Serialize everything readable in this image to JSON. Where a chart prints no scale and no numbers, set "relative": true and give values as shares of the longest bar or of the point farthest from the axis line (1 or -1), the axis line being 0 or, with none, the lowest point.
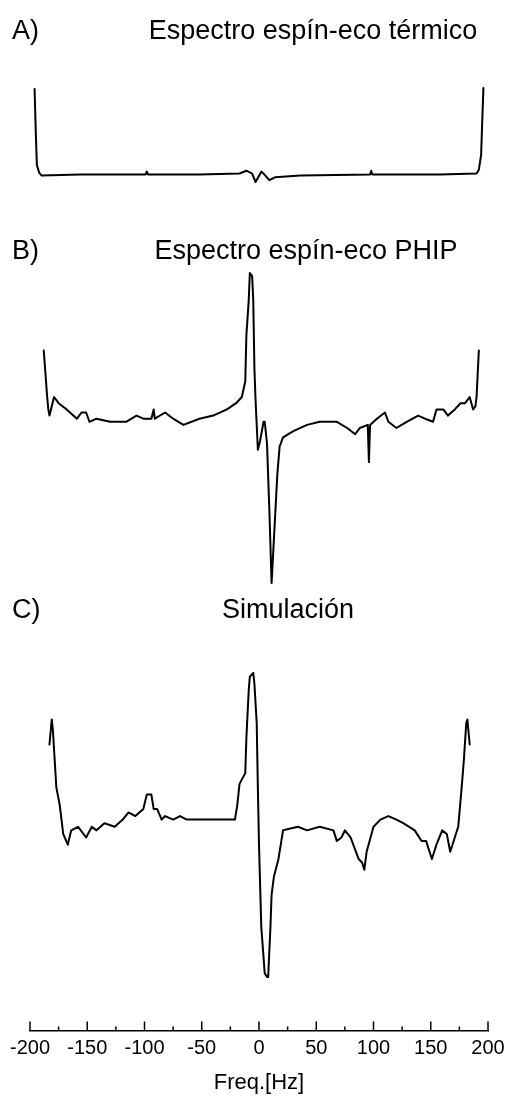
{
  "chart_data": [
    {
      "type": "line",
      "title": "Espectro espín-eco térmico",
      "annotations": [
        "A)"
      ],
      "relative": true,
      "xlim": [
        -200,
        200
      ],
      "tick_labels": false,
      "marker": "none",
      "line_style": "solid",
      "x": [
        -196,
        -195,
        -194,
        -192,
        -190,
        -156,
        -99,
        -98,
        -97,
        -52,
        -17,
        -11,
        -6,
        -3,
        2,
        4,
        9,
        14,
        36,
        97,
        98,
        99,
        158,
        190,
        192,
        194,
        195,
        196
      ],
      "series": [
        {
          "color": "#000000",
          "values": [
            0.99,
            0.55,
            0.18,
            0.1,
            0.07,
            0.08,
            0.08,
            0.11,
            0.08,
            0.08,
            0.09,
            0.12,
            0.09,
            0,
            0.11,
            0.09,
            0.02,
            0.05,
            0.07,
            0.08,
            0.12,
            0.08,
            0.08,
            0.09,
            0.13,
            0.29,
            0.66,
            1.0
          ]
        }
      ]
    },
    {
      "type": "line",
      "title": "Espectro espín-eco PHIP",
      "annotations": [
        "B)"
      ],
      "relative": true,
      "xlim": [
        -200,
        200
      ],
      "tick_labels": false,
      "marker": "none",
      "line_style": "solid",
      "x": [
        -188,
        -185,
        -184,
        -183,
        -181,
        -179,
        -175,
        -168,
        -159,
        -155,
        -151,
        -148,
        -142,
        -130,
        -116,
        -107,
        -101,
        -94,
        -92,
        -91,
        -82,
        -75,
        -66,
        -52,
        -40,
        -28,
        -20,
        -15,
        -12,
        -11,
        -9,
        -8,
        -6,
        -5,
        -4,
        -3,
        -2,
        -1,
        1,
        4,
        5,
        7,
        9,
        11,
        13,
        16,
        18,
        21,
        30,
        42,
        53,
        68,
        77,
        84,
        88,
        95,
        96,
        97,
        103,
        110,
        113,
        120,
        129,
        139,
        145,
        152,
        155,
        161,
        165,
        171,
        176,
        180,
        184,
        187,
        189,
        190,
        192
      ],
      "series": [
        {
          "color": "#000000",
          "values": [
            0.75,
            0.6,
            0.56,
            0.54,
            0.57,
            0.6,
            0.58,
            0.56,
            0.53,
            0.55,
            0.55,
            0.52,
            0.53,
            0.52,
            0.52,
            0.54,
            0.53,
            0.53,
            0.56,
            0.53,
            0.55,
            0.53,
            0.51,
            0.53,
            0.54,
            0.56,
            0.58,
            0.6,
            0.65,
            0.8,
            0.91,
            1.0,
            0.99,
            0.91,
            0.69,
            0.59,
            0.51,
            0.43,
            0.46,
            0.52,
            0.52,
            0.45,
            0.24,
            0,
            0.14,
            0.35,
            0.44,
            0.47,
            0.49,
            0.51,
            0.52,
            0.52,
            0.5,
            0.48,
            0.5,
            0.51,
            0.39,
            0.51,
            0.53,
            0.55,
            0.52,
            0.5,
            0.52,
            0.54,
            0.53,
            0.52,
            0.56,
            0.56,
            0.54,
            0.56,
            0.58,
            0.58,
            0.6,
            0.56,
            0.57,
            0.6,
            0.75
          ]
        }
      ]
    },
    {
      "type": "line",
      "title": "Simulación",
      "annotations": [
        "C)"
      ],
      "relative": true,
      "xlabel": "Freq.[Hz]",
      "xlim": [
        -200,
        200
      ],
      "xticks": [
        -200,
        {
          "value": -175,
          "label": null
        },
        -150,
        {
          "value": -125,
          "label": null
        },
        -100,
        {
          "value": -75,
          "label": null
        },
        -50,
        {
          "value": -25,
          "label": null
        },
        0,
        {
          "value": 25,
          "label": null
        },
        50,
        {
          "value": 75,
          "label": null
        },
        100,
        {
          "value": 125,
          "label": null
        },
        150,
        {
          "value": 175,
          "label": null
        },
        200
      ],
      "tick_labels": "x",
      "marker": "none",
      "line_style": "solid",
      "x": [
        -183,
        -181,
        -180,
        -177,
        -174,
        -171,
        -167,
        -164,
        -158,
        -151,
        -146,
        -142,
        -135,
        -126,
        -119,
        -114,
        -108,
        -101,
        -98,
        -94,
        -92,
        -89,
        -85,
        -82,
        -75,
        -69,
        -63,
        -52,
        -36,
        -31,
        -21,
        -19,
        -17,
        -12,
        -11,
        -9,
        -8,
        -5,
        -4,
        -2,
        -1,
        0,
        2,
        5,
        7,
        8,
        10,
        11,
        13,
        17,
        21,
        34,
        42,
        53,
        65,
        68,
        72,
        75,
        80,
        87,
        90,
        92,
        94,
        100,
        106,
        113,
        120,
        126,
        136,
        142,
        146,
        151,
        155,
        160,
        164,
        167,
        171,
        174,
        177,
        179,
        181,
        182,
        184
      ],
      "series": [
        {
          "color": "#000000",
          "values": [
            0.8,
            0.87,
            0.84,
            0.68,
            0.63,
            0.55,
            0.52,
            0.56,
            0.57,
            0.54,
            0.57,
            0.56,
            0.58,
            0.57,
            0.59,
            0.61,
            0.6,
            0.62,
            0.66,
            0.66,
            0.62,
            0.62,
            0.59,
            0.6,
            0.59,
            0.6,
            0.59,
            0.59,
            0.59,
            0.59,
            0.59,
            0.63,
            0.69,
            0.72,
            0.82,
            0.95,
            0.99,
            1.0,
            0.97,
            0.86,
            0.68,
            0.52,
            0.29,
            0.16,
            0.15,
            0.15,
            0.29,
            0.38,
            0.43,
            0.48,
            0.56,
            0.57,
            0.56,
            0.57,
            0.56,
            0.53,
            0.54,
            0.56,
            0.54,
            0.48,
            0.47,
            0.45,
            0.5,
            0.57,
            0.59,
            0.6,
            0.59,
            0.58,
            0.56,
            0.53,
            0.53,
            0.48,
            0.52,
            0.56,
            0.55,
            0.5,
            0.54,
            0.57,
            0.68,
            0.76,
            0.86,
            0.87,
            0.8
          ]
        }
      ]
    }
  ]
}
